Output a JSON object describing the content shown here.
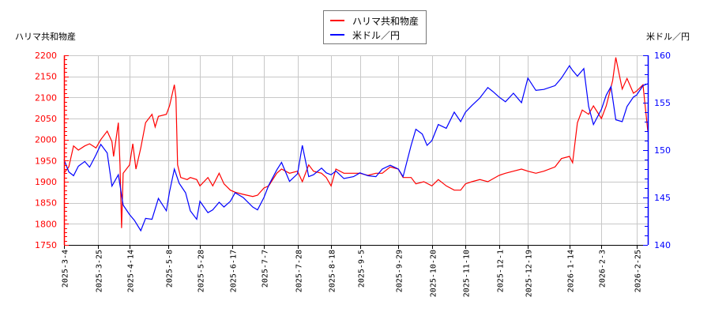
{
  "chart_data": {
    "type": "line",
    "title": "",
    "legend": {
      "position": "top-center",
      "entries": [
        {
          "name": "ハリマ共和物産",
          "color": "#ff0000"
        },
        {
          "name": "米ドル／円",
          "color": "#0000ff"
        }
      ]
    },
    "left_axis": {
      "label": "ハリマ共和物産",
      "color": "#ff0000",
      "ylim": [
        1750,
        2200
      ],
      "ticks": [
        1750,
        1800,
        1850,
        1900,
        1950,
        2000,
        2050,
        2100,
        2150,
        2200
      ]
    },
    "right_axis": {
      "label": "米ドル／円",
      "color": "#0000ff",
      "ylim": [
        140,
        160
      ],
      "ticks": [
        140,
        145,
        150,
        155,
        160
      ]
    },
    "x_ticks": [
      "2025-3-4",
      "2025-3-25",
      "2025-4-14",
      "2025-5-8",
      "2025-5-28",
      "2025-6-17",
      "2025-7-7",
      "2025-7-28",
      "2025-8-18",
      "2025-9-5",
      "2025-9-29",
      "2025-10-20",
      "2025-11-10",
      "2025-12-1",
      "2025-12-19",
      "2026-1-14",
      "2026-2-3",
      "2026-2-25"
    ],
    "grid": true,
    "series": [
      {
        "name": "ハリマ共和物産",
        "axis": "left",
        "color": "#ff0000",
        "points": [
          [
            "2025-3-4",
            1920
          ],
          [
            "2025-3-7",
            1935
          ],
          [
            "2025-3-10",
            1985
          ],
          [
            "2025-3-13",
            1975
          ],
          [
            "2025-3-17",
            1985
          ],
          [
            "2025-3-20",
            1990
          ],
          [
            "2025-3-24",
            1980
          ],
          [
            "2025-3-27",
            2000
          ],
          [
            "2025-3-31",
            2020
          ],
          [
            "2025-4-3",
            1995
          ],
          [
            "2025-4-4",
            1960
          ],
          [
            "2025-4-7",
            2040
          ],
          [
            "2025-4-8",
            1940
          ],
          [
            "2025-4-9",
            1790
          ],
          [
            "2025-4-10",
            1920
          ],
          [
            "2025-4-14",
            1940
          ],
          [
            "2025-4-16",
            1990
          ],
          [
            "2025-4-18",
            1930
          ],
          [
            "2025-4-21",
            1980
          ],
          [
            "2025-4-24",
            2040
          ],
          [
            "2025-4-28",
            2060
          ],
          [
            "2025-4-30",
            2030
          ],
          [
            "2025-5-2",
            2055
          ],
          [
            "2025-5-7",
            2060
          ],
          [
            "2025-5-9",
            2080
          ],
          [
            "2025-5-12",
            2130
          ],
          [
            "2025-5-13",
            2100
          ],
          [
            "2025-5-14",
            1940
          ],
          [
            "2025-5-16",
            1910
          ],
          [
            "2025-5-20",
            1905
          ],
          [
            "2025-5-22",
            1910
          ],
          [
            "2025-5-26",
            1905
          ],
          [
            "2025-5-28",
            1890
          ],
          [
            "2025-6-2",
            1910
          ],
          [
            "2025-6-5",
            1890
          ],
          [
            "2025-6-9",
            1920
          ],
          [
            "2025-6-12",
            1895
          ],
          [
            "2025-6-16",
            1880
          ],
          [
            "2025-6-19",
            1875
          ],
          [
            "2025-6-24",
            1870
          ],
          [
            "2025-6-30",
            1865
          ],
          [
            "2025-7-3",
            1868
          ],
          [
            "2025-7-7",
            1885
          ],
          [
            "2025-7-10",
            1890
          ],
          [
            "2025-7-15",
            1920
          ],
          [
            "2025-7-18",
            1930
          ],
          [
            "2025-7-23",
            1920
          ],
          [
            "2025-7-28",
            1925
          ],
          [
            "2025-7-31",
            1900
          ],
          [
            "2025-8-4",
            1940
          ],
          [
            "2025-8-7",
            1925
          ],
          [
            "2025-8-12",
            1920
          ],
          [
            "2025-8-15",
            1910
          ],
          [
            "2025-8-18",
            1890
          ],
          [
            "2025-8-21",
            1930
          ],
          [
            "2025-8-26",
            1920
          ],
          [
            "2025-9-1",
            1920
          ],
          [
            "2025-9-5",
            1920
          ],
          [
            "2025-9-10",
            1915
          ],
          [
            "2025-9-15",
            1920
          ],
          [
            "2025-9-19",
            1920
          ],
          [
            "2025-9-24",
            1935
          ],
          [
            "2025-9-29",
            1930
          ],
          [
            "2025-10-2",
            1910
          ],
          [
            "2025-10-7",
            1910
          ],
          [
            "2025-10-10",
            1895
          ],
          [
            "2025-10-15",
            1900
          ],
          [
            "2025-10-20",
            1890
          ],
          [
            "2025-10-24",
            1905
          ],
          [
            "2025-10-29",
            1890
          ],
          [
            "2025-11-3",
            1880
          ],
          [
            "2025-11-7",
            1880
          ],
          [
            "2025-11-10",
            1895
          ],
          [
            "2025-11-14",
            1900
          ],
          [
            "2025-11-19",
            1905
          ],
          [
            "2025-11-24",
            1900
          ],
          [
            "2025-12-1",
            1915
          ],
          [
            "2025-12-5",
            1920
          ],
          [
            "2025-12-10",
            1925
          ],
          [
            "2025-12-15",
            1930
          ],
          [
            "2025-12-19",
            1925
          ],
          [
            "2025-12-24",
            1920
          ],
          [
            "2025-12-29",
            1925
          ],
          [
            "2026-1-5",
            1935
          ],
          [
            "2026-1-9",
            1955
          ],
          [
            "2026-1-14",
            1960
          ],
          [
            "2026-1-16",
            1945
          ],
          [
            "2026-1-19",
            2040
          ],
          [
            "2026-1-22",
            2070
          ],
          [
            "2026-1-26",
            2060
          ],
          [
            "2026-1-29",
            2080
          ],
          [
            "2026-2-3",
            2050
          ],
          [
            "2026-2-6",
            2080
          ],
          [
            "2026-2-10",
            2140
          ],
          [
            "2026-2-12",
            2195
          ],
          [
            "2026-2-16",
            2120
          ],
          [
            "2026-2-19",
            2145
          ],
          [
            "2026-2-23",
            2110
          ],
          [
            "2026-2-25",
            2115
          ],
          [
            "2026-3-1",
            2130
          ],
          [
            "2026-3-4",
            2020
          ]
        ]
      },
      {
        "name": "米ドル／円",
        "axis": "right",
        "color": "#0000ff",
        "points": [
          [
            "2025-3-4",
            149.0
          ],
          [
            "2025-3-7",
            147.7
          ],
          [
            "2025-3-10",
            147.3
          ],
          [
            "2025-3-13",
            148.3
          ],
          [
            "2025-3-17",
            148.8
          ],
          [
            "2025-3-20",
            148.2
          ],
          [
            "2025-3-24",
            149.5
          ],
          [
            "2025-3-27",
            150.6
          ],
          [
            "2025-3-31",
            149.7
          ],
          [
            "2025-4-3",
            146.2
          ],
          [
            "2025-4-7",
            147.4
          ],
          [
            "2025-4-10",
            144.2
          ],
          [
            "2025-4-14",
            143.2
          ],
          [
            "2025-4-17",
            142.6
          ],
          [
            "2025-4-21",
            141.5
          ],
          [
            "2025-4-24",
            142.8
          ],
          [
            "2025-4-28",
            142.7
          ],
          [
            "2025-5-2",
            144.9
          ],
          [
            "2025-5-7",
            143.6
          ],
          [
            "2025-5-9",
            145.6
          ],
          [
            "2025-5-12",
            148.0
          ],
          [
            "2025-5-15",
            146.5
          ],
          [
            "2025-5-19",
            145.5
          ],
          [
            "2025-5-22",
            143.6
          ],
          [
            "2025-5-26",
            142.7
          ],
          [
            "2025-5-28",
            144.6
          ],
          [
            "2025-6-2",
            143.4
          ],
          [
            "2025-6-5",
            143.7
          ],
          [
            "2025-6-9",
            144.5
          ],
          [
            "2025-6-12",
            144.0
          ],
          [
            "2025-6-16",
            144.6
          ],
          [
            "2025-6-19",
            145.5
          ],
          [
            "2025-6-24",
            145.0
          ],
          [
            "2025-6-30",
            144.0
          ],
          [
            "2025-7-3",
            143.7
          ],
          [
            "2025-7-7",
            145.0
          ],
          [
            "2025-7-10",
            146.3
          ],
          [
            "2025-7-15",
            147.9
          ],
          [
            "2025-7-18",
            148.7
          ],
          [
            "2025-7-23",
            146.7
          ],
          [
            "2025-7-28",
            147.5
          ],
          [
            "2025-7-31",
            150.5
          ],
          [
            "2025-8-4",
            147.2
          ],
          [
            "2025-8-7",
            147.4
          ],
          [
            "2025-8-12",
            148.1
          ],
          [
            "2025-8-15",
            147.6
          ],
          [
            "2025-8-18",
            147.4
          ],
          [
            "2025-8-21",
            147.8
          ],
          [
            "2025-8-26",
            147.0
          ],
          [
            "2025-9-1",
            147.2
          ],
          [
            "2025-9-5",
            147.6
          ],
          [
            "2025-9-10",
            147.3
          ],
          [
            "2025-9-15",
            147.2
          ],
          [
            "2025-9-19",
            148.0
          ],
          [
            "2025-9-24",
            148.4
          ],
          [
            "2025-9-29",
            148.0
          ],
          [
            "2025-10-2",
            147.2
          ],
          [
            "2025-10-7",
            150.5
          ],
          [
            "2025-10-10",
            152.2
          ],
          [
            "2025-10-14",
            151.7
          ],
          [
            "2025-10-17",
            150.5
          ],
          [
            "2025-10-20",
            151.0
          ],
          [
            "2025-10-24",
            152.7
          ],
          [
            "2025-10-29",
            152.3
          ],
          [
            "2025-11-3",
            154.0
          ],
          [
            "2025-11-7",
            153.0
          ],
          [
            "2025-11-10",
            154.0
          ],
          [
            "2025-11-14",
            154.7
          ],
          [
            "2025-11-19",
            155.5
          ],
          [
            "2025-11-24",
            156.6
          ],
          [
            "2025-11-27",
            156.2
          ],
          [
            "2025-12-1",
            155.6
          ],
          [
            "2025-12-5",
            155.1
          ],
          [
            "2025-12-10",
            156.0
          ],
          [
            "2025-12-15",
            155.0
          ],
          [
            "2025-12-19",
            157.6
          ],
          [
            "2025-12-24",
            156.3
          ],
          [
            "2025-12-29",
            156.4
          ],
          [
            "2026-1-5",
            156.8
          ],
          [
            "2026-1-9",
            157.6
          ],
          [
            "2026-1-14",
            158.9
          ],
          [
            "2026-1-16",
            158.4
          ],
          [
            "2026-1-19",
            157.8
          ],
          [
            "2026-1-23",
            158.6
          ],
          [
            "2026-1-26",
            154.6
          ],
          [
            "2026-1-29",
            152.7
          ],
          [
            "2026-2-3",
            154.3
          ],
          [
            "2026-2-6",
            155.8
          ],
          [
            "2026-2-9",
            156.7
          ],
          [
            "2026-2-12",
            153.2
          ],
          [
            "2026-2-16",
            153.0
          ],
          [
            "2026-2-19",
            154.6
          ],
          [
            "2026-2-23",
            155.6
          ],
          [
            "2026-2-25",
            155.8
          ],
          [
            "2026-3-1",
            156.8
          ],
          [
            "2026-3-4",
            157.0
          ]
        ]
      }
    ]
  },
  "labels": {
    "left_axis_title": "ハリマ共和物産",
    "right_axis_title": "米ドル／円",
    "legend_item_1": "ハリマ共和物産",
    "legend_item_2": "米ドル／円"
  }
}
